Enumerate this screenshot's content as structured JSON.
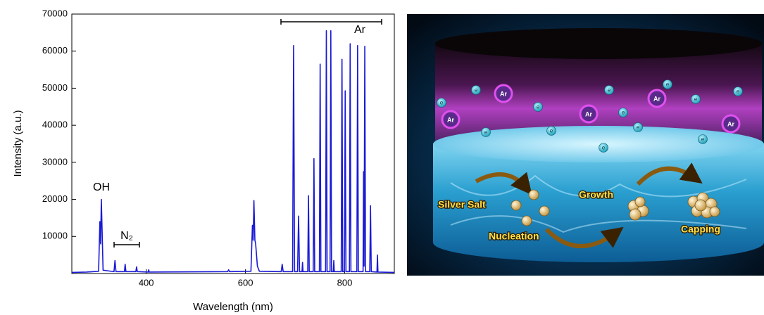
{
  "chart_data": {
    "type": "line",
    "x_label": "Wavelength (nm)",
    "y_label": "Intensity (a.u.)",
    "annotations": [
      "OH",
      "N₂",
      "Ar"
    ],
    "color": "#1a1ad6",
    "x": [
      250,
      280,
      304,
      306.5,
      308,
      309.5,
      313,
      335,
      337,
      339,
      356,
      357.5,
      359,
      379,
      380.5,
      382,
      404,
      405,
      406,
      564,
      566,
      568,
      611,
      614,
      615.5,
      617,
      619,
      620.5,
      624,
      628,
      672,
      674,
      676,
      695,
      697,
      699,
      705,
      707,
      709,
      714,
      715,
      716,
      725.5,
      727,
      728.5,
      736.5,
      738,
      739.5,
      749,
      750.5,
      752,
      761.5,
      763,
      764.5,
      770.5,
      772,
      773.5,
      777,
      778,
      779,
      793,
      794.5,
      796,
      799.5,
      801,
      802.5,
      809.5,
      811,
      812.5,
      824.5,
      826,
      827.5,
      837,
      838,
      839,
      840.5,
      842,
      850.5,
      852,
      853.5,
      865,
      866,
      867,
      900
    ],
    "values": [
      300,
      400,
      600,
      14000,
      8000,
      20000,
      900,
      500,
      3500,
      500,
      500,
      2500,
      500,
      500,
      1800,
      500,
      400,
      1000,
      400,
      500,
      1000,
      500,
      600,
      13000,
      9000,
      19700,
      9000,
      8000,
      2000,
      600,
      500,
      2500,
      500,
      500,
      61500,
      500,
      500,
      15500,
      500,
      500,
      3000,
      500,
      500,
      21000,
      500,
      500,
      31000,
      500,
      500,
      56500,
      500,
      500,
      65500,
      500,
      500,
      65500,
      500,
      500,
      3500,
      500,
      500,
      57800,
      500,
      500,
      49300,
      500,
      500,
      62000,
      500,
      500,
      61500,
      500,
      500,
      27500,
      2000,
      61300,
      500,
      500,
      18300,
      500,
      400,
      5000,
      400,
      300
    ],
    "xlim": [
      250,
      900
    ],
    "ylim": [
      0,
      70000
    ],
    "xticks": [
      400,
      600,
      800
    ],
    "yticks": [
      10000,
      20000,
      30000,
      40000,
      50000,
      60000,
      70000
    ]
  },
  "illustration": {
    "ion_label": "Ar",
    "electron_label": "e",
    "steps": [
      "Silver Salt",
      "Nucleation",
      "Growth",
      "Capping"
    ]
  }
}
